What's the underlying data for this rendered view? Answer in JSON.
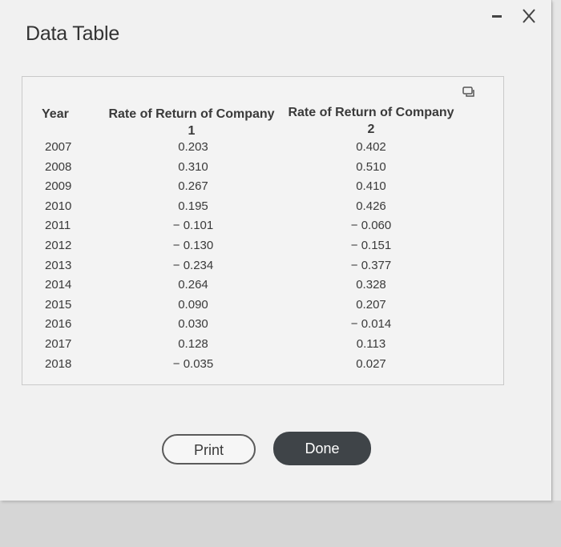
{
  "window": {
    "title": "Data Table"
  },
  "table": {
    "headers": {
      "year": "Year",
      "company1_line1": "Rate of Return of Company",
      "company1_line2": "1",
      "company2_line1": "Rate of Return of Company",
      "company2_line2": "2"
    },
    "rows": [
      {
        "year": "2007",
        "c1": "0.203",
        "c2": "0.402"
      },
      {
        "year": "2008",
        "c1": "0.310",
        "c2": "0.510"
      },
      {
        "year": "2009",
        "c1": "0.267",
        "c2": "0.410"
      },
      {
        "year": "2010",
        "c1": "0.195",
        "c2": "0.426"
      },
      {
        "year": "2011",
        "c1": "− 0.101",
        "c2": "− 0.060"
      },
      {
        "year": "2012",
        "c1": "− 0.130",
        "c2": "− 0.151"
      },
      {
        "year": "2013",
        "c1": "− 0.234",
        "c2": "− 0.377"
      },
      {
        "year": "2014",
        "c1": "0.264",
        "c2": "0.328"
      },
      {
        "year": "2015",
        "c1": "0.090",
        "c2": "0.207"
      },
      {
        "year": "2016",
        "c1": "0.030",
        "c2": "− 0.014"
      },
      {
        "year": "2017",
        "c1": "0.128",
        "c2": "0.113"
      },
      {
        "year": "2018",
        "c1": "− 0.035",
        "c2": "0.027"
      }
    ]
  },
  "buttons": {
    "print_label": "Print",
    "done_label": "Done"
  },
  "icons": {
    "minimize": "minimize-icon",
    "close": "close-icon",
    "copy": "copy-icon"
  },
  "colors": {
    "done_bg": "#3f4448",
    "dialog_bg": "#f1f1f1"
  }
}
